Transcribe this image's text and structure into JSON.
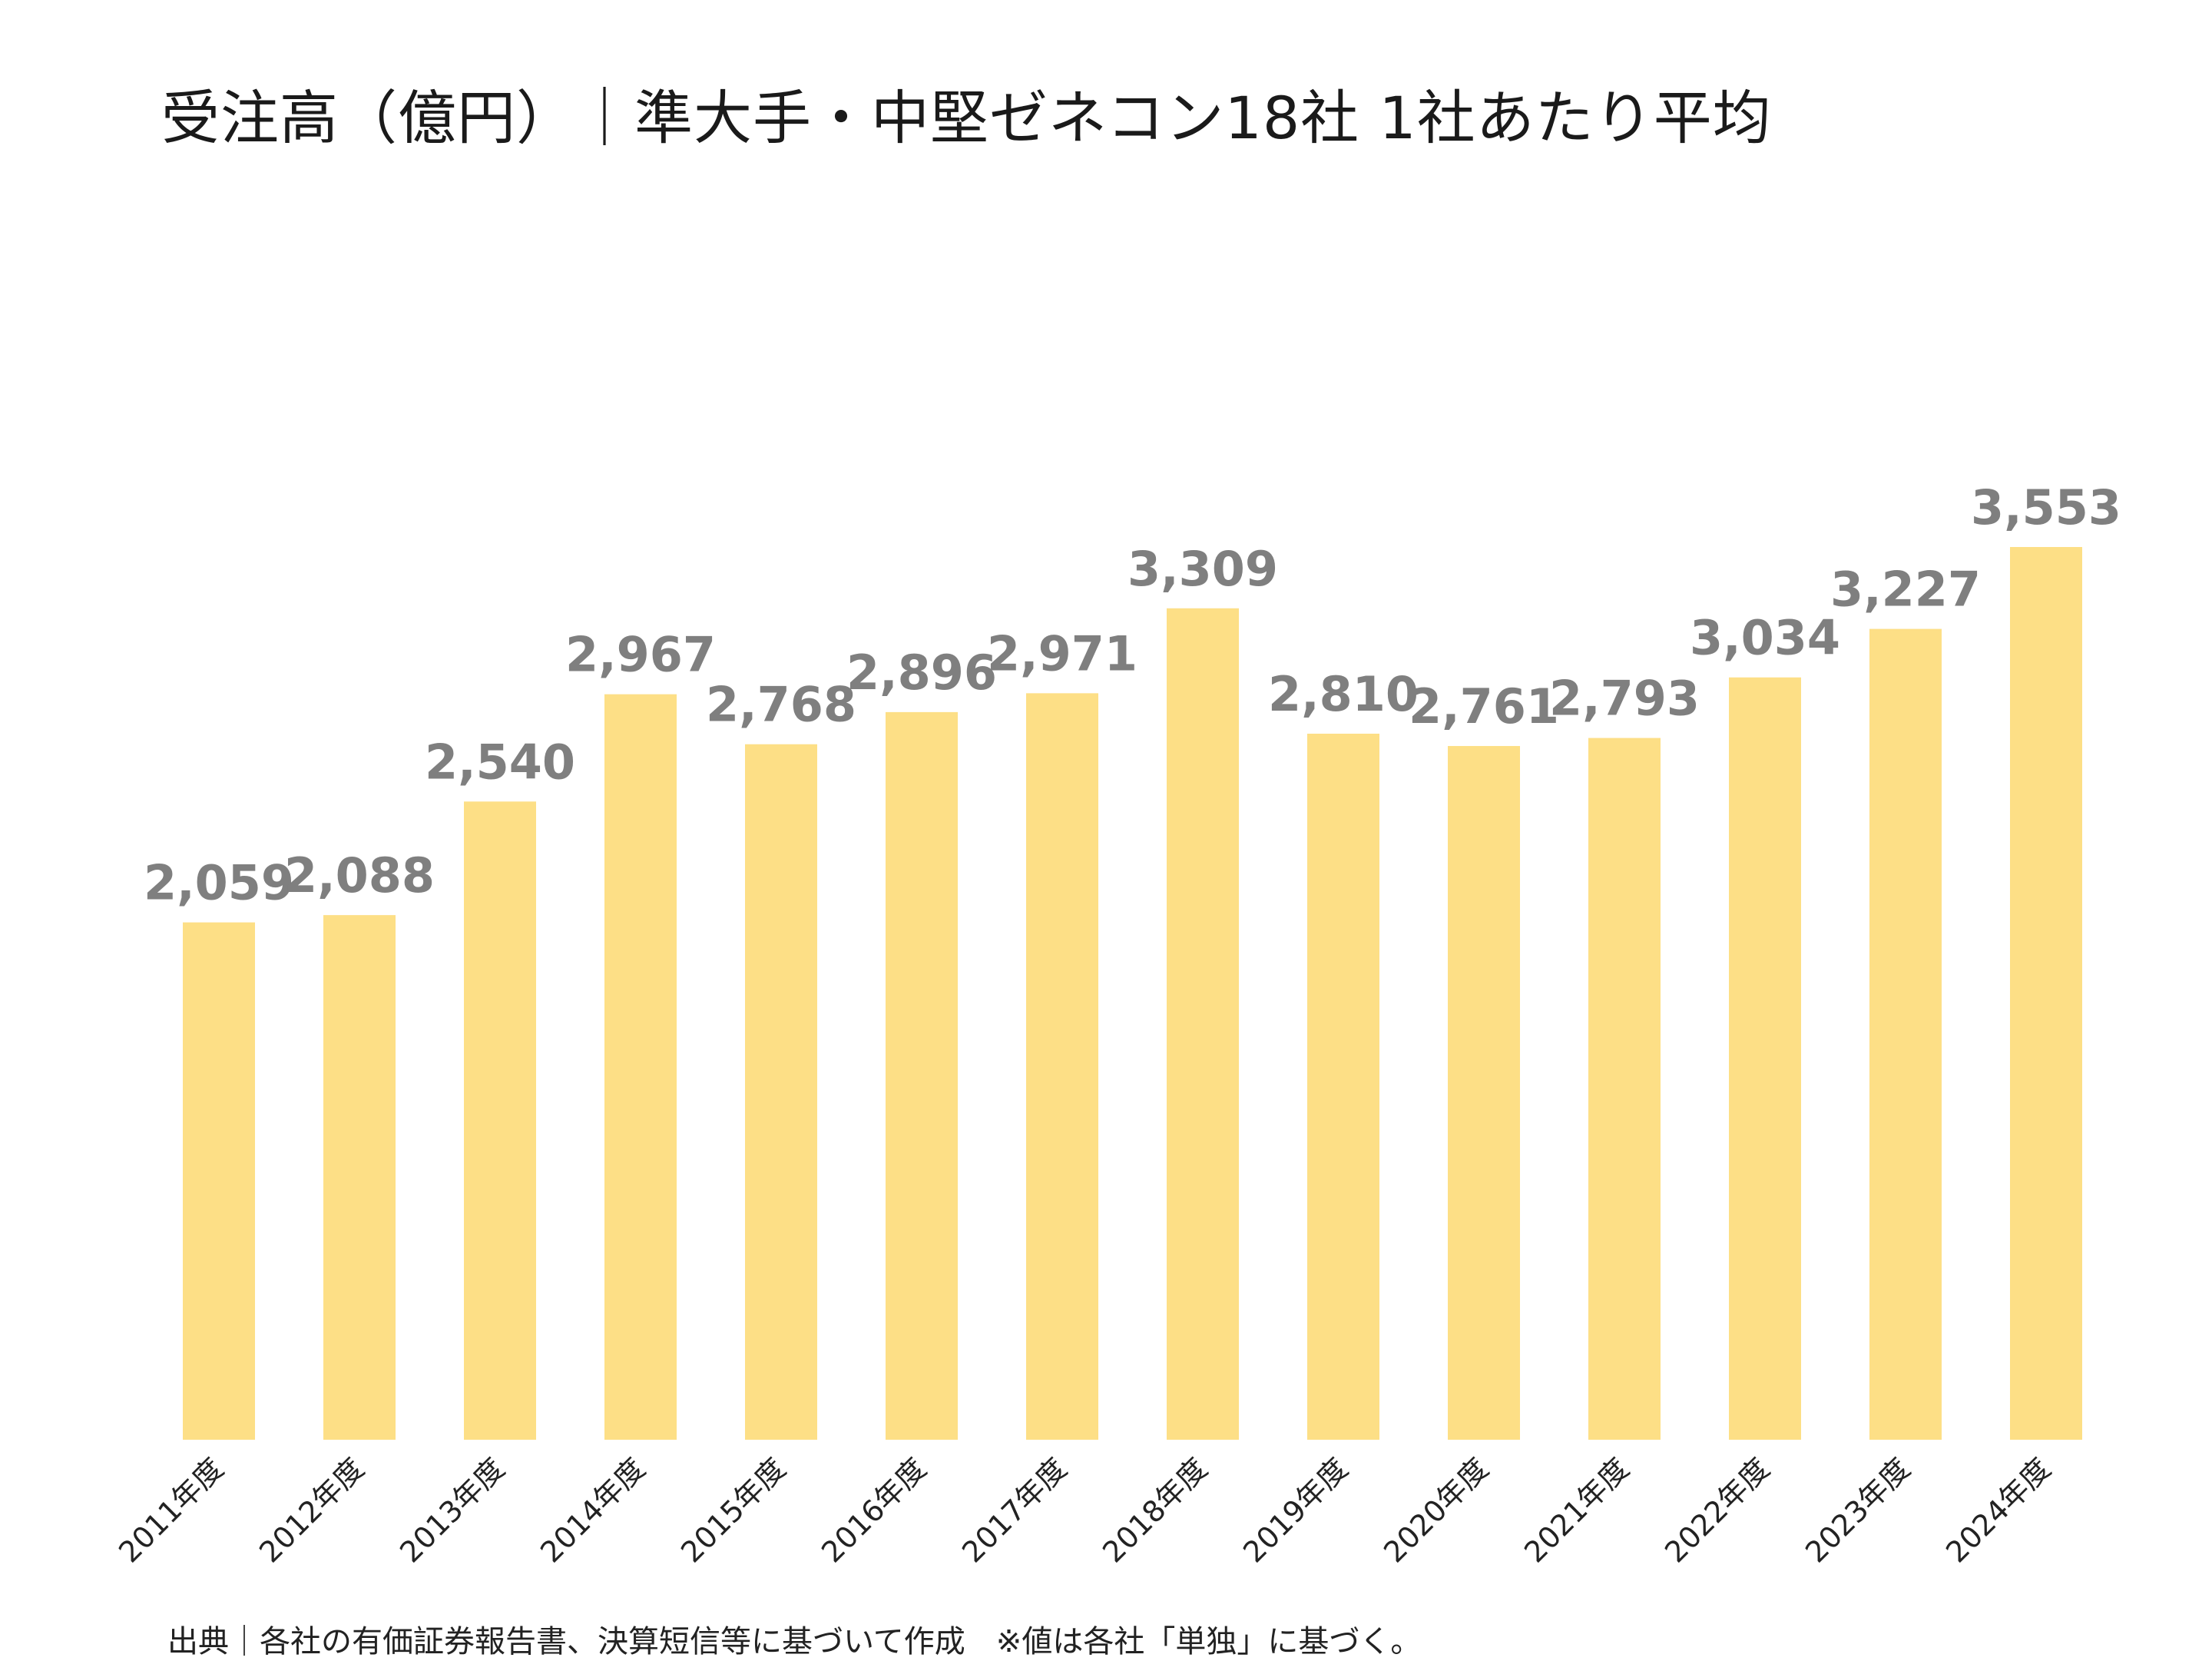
{
  "colors": {
    "bar": "#FDDF86",
    "value_label": "#7F7F7F",
    "tick_label": "#222222",
    "title": "#1a1a1a"
  },
  "chart_data": {
    "type": "bar",
    "title": "受注高（億円）｜準大手・中堅ゼネコン18社 1社あたり平均",
    "categories": [
      "2011年度",
      "2012年度",
      "2013年度",
      "2014年度",
      "2015年度",
      "2016年度",
      "2017年度",
      "2018年度",
      "2019年度",
      "2020年度",
      "2021年度",
      "2022年度",
      "2023年度",
      "2024年度"
    ],
    "values": [
      2059,
      2088,
      2540,
      2967,
      2768,
      2896,
      2971,
      3309,
      2810,
      2761,
      2793,
      3034,
      3227,
      3553
    ],
    "value_labels": [
      "2,059",
      "2,088",
      "2,540",
      "2,967",
      "2,768",
      "2,896",
      "2,971",
      "3,309",
      "2,810",
      "2,761",
      "2,793",
      "3,034",
      "3,227",
      "3,553"
    ],
    "xlabel": "",
    "ylabel": "",
    "ylim": [
      0,
      3553
    ],
    "grid": false,
    "legend": "none"
  },
  "source_note": "出典｜各社の有価証券報告書、決算短信等に基づいて作成　※値は各社「単独」に基づく。"
}
